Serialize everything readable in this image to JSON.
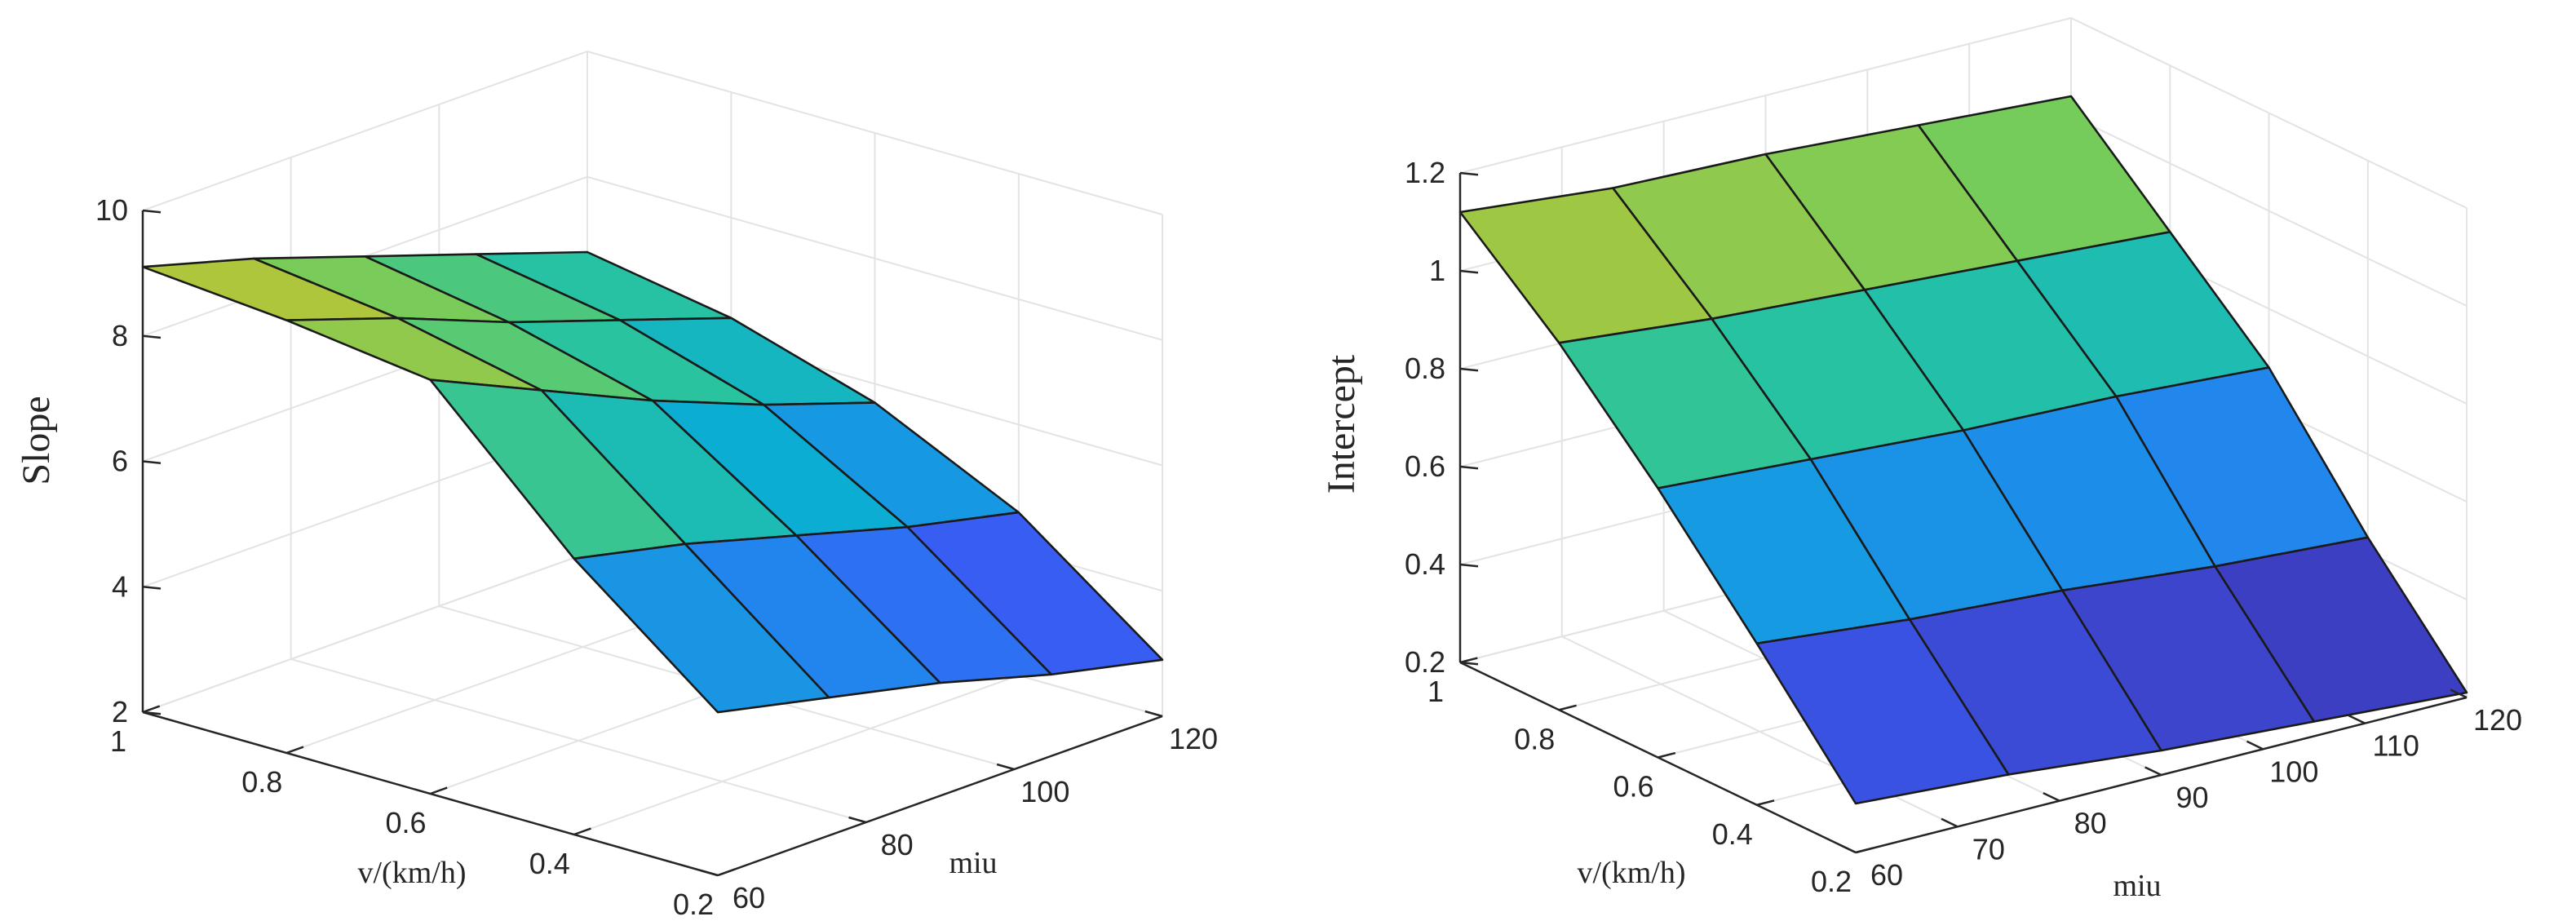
{
  "chart_data": [
    {
      "type": "surface3d",
      "zlabel": "Slope",
      "xlabel": "v/(km/h)",
      "ylabel": "miu",
      "x": [
        1.0,
        0.8,
        0.6,
        0.4,
        0.2
      ],
      "y": [
        60,
        75,
        90,
        105,
        120
      ],
      "z": [
        [
          9.1,
          8.6,
          8.0,
          7.4,
          6.8
        ],
        [
          8.9,
          8.3,
          7.6,
          7.0,
          6.4
        ],
        [
          8.6,
          7.8,
          7.0,
          6.3,
          5.7
        ],
        [
          6.4,
          6.0,
          5.5,
          5.0,
          4.6
        ],
        [
          4.6,
          4.2,
          3.8,
          3.3,
          2.9
        ]
      ],
      "zlim": [
        2,
        10
      ],
      "x_ticks": [
        "1",
        "0.8",
        "0.6",
        "0.4",
        "0.2"
      ],
      "y_ticks": [
        "60",
        "80",
        "100",
        "120"
      ],
      "z_ticks": [
        "2",
        "4",
        "6",
        "8",
        "10"
      ],
      "colormap": "parula",
      "grid": true
    },
    {
      "type": "surface3d",
      "zlabel": "Intercept",
      "xlabel": "v/(km/h)",
      "ylabel": "miu",
      "x": [
        1.0,
        0.8,
        0.6,
        0.4,
        0.2
      ],
      "y": [
        60,
        75,
        90,
        105,
        120
      ],
      "z": [
        [
          1.12,
          1.09,
          1.08,
          1.06,
          1.04
        ],
        [
          0.95,
          0.92,
          0.9,
          0.88,
          0.86
        ],
        [
          0.75,
          0.73,
          0.71,
          0.7,
          0.68
        ],
        [
          0.53,
          0.5,
          0.48,
          0.45,
          0.43
        ],
        [
          0.3,
          0.28,
          0.25,
          0.23,
          0.21
        ]
      ],
      "zlim": [
        0.2,
        1.2
      ],
      "x_ticks": [
        "1",
        "0.8",
        "0.6",
        "0.4",
        "0.2"
      ],
      "y_ticks": [
        "60",
        "70",
        "80",
        "90",
        "100",
        "110",
        "120"
      ],
      "z_ticks": [
        "0.2",
        "0.4",
        "0.6",
        "0.8",
        "1",
        "1.2"
      ],
      "colormap": "parula",
      "grid": true
    }
  ]
}
